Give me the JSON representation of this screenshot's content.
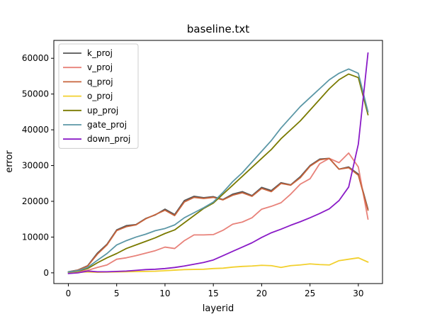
{
  "chart_data": {
    "type": "line",
    "title": "baseline.txt",
    "xlabel": "layerid",
    "ylabel": "error",
    "xlim": [
      -1.5,
      32.5
    ],
    "ylim": [
      -3000,
      65000
    ],
    "xticks": [
      0,
      5,
      10,
      15,
      20,
      25,
      30
    ],
    "yticks": [
      0,
      10000,
      20000,
      30000,
      40000,
      50000,
      60000
    ],
    "xtick_labels": [
      "0",
      "5",
      "10",
      "15",
      "20",
      "25",
      "30"
    ],
    "ytick_labels": [
      "0",
      "10000",
      "20000",
      "30000",
      "40000",
      "50000",
      "60000"
    ],
    "grid": false,
    "legend_position": "top-left",
    "x": [
      0,
      1,
      2,
      3,
      4,
      5,
      6,
      7,
      8,
      9,
      10,
      11,
      12,
      13,
      14,
      15,
      16,
      17,
      18,
      19,
      20,
      21,
      22,
      23,
      24,
      25,
      26,
      27,
      28,
      29,
      30,
      31
    ],
    "series": [
      {
        "name": "k_proj",
        "color": "#555555",
        "values": [
          300,
          800,
          2000,
          5500,
          8000,
          12000,
          13200,
          13500,
          15200,
          16200,
          17800,
          16300,
          20200,
          21400,
          21000,
          21300,
          20500,
          22000,
          22700,
          21600,
          23900,
          23000,
          25200,
          24600,
          26900,
          30000,
          31800,
          32000,
          29000,
          29600,
          27600,
          17800
        ]
      },
      {
        "name": "v_proj",
        "color": "#e8827a",
        "values": [
          200,
          400,
          700,
          1500,
          2200,
          3800,
          4200,
          4800,
          5500,
          6200,
          7200,
          6800,
          9000,
          10600,
          10600,
          10700,
          11900,
          13600,
          14200,
          15400,
          17800,
          18600,
          19600,
          22000,
          24800,
          26300,
          30500,
          32000,
          30800,
          33500,
          29600,
          15000
        ]
      },
      {
        "name": "q_proj",
        "color": "#c8643c",
        "values": [
          250,
          750,
          1900,
          5200,
          7800,
          11800,
          12900,
          13400,
          15100,
          16300,
          17500,
          16000,
          19800,
          21100,
          20800,
          21100,
          20400,
          21700,
          22400,
          21400,
          23600,
          22700,
          25000,
          24500,
          26600,
          29800,
          31600,
          32000,
          29000,
          29400,
          27300,
          17500
        ]
      },
      {
        "name": "o_proj",
        "color": "#f2d02e",
        "values": [
          100,
          150,
          250,
          150,
          200,
          250,
          300,
          350,
          400,
          450,
          600,
          750,
          900,
          950,
          1000,
          1200,
          1300,
          1600,
          1800,
          1900,
          2100,
          2000,
          1500,
          2000,
          2200,
          2500,
          2300,
          2200,
          3400,
          3800,
          4200,
          3000
        ]
      },
      {
        "name": "up_proj",
        "color": "#7a7a00",
        "values": [
          200,
          500,
          1200,
          2800,
          4200,
          5400,
          6800,
          7800,
          8800,
          9800,
          11000,
          12000,
          14000,
          16000,
          18000,
          19500,
          22000,
          24500,
          27000,
          29500,
          32000,
          34500,
          37500,
          40000,
          42500,
          45500,
          48500,
          51500,
          54000,
          55600,
          54600,
          44200
        ]
      },
      {
        "name": "gate_proj",
        "color": "#5b97a6",
        "values": [
          250,
          600,
          1500,
          3500,
          5400,
          7800,
          9000,
          10000,
          10800,
          11800,
          12400,
          13400,
          15400,
          16800,
          18200,
          19800,
          22500,
          25500,
          28000,
          31000,
          34000,
          37000,
          40500,
          43500,
          46500,
          49000,
          51500,
          54000,
          55800,
          57000,
          55800,
          45000
        ]
      },
      {
        "name": "down_proj",
        "color": "#8a1bc7",
        "values": [
          -200,
          0,
          500,
          300,
          300,
          400,
          500,
          700,
          900,
          1000,
          1200,
          1500,
          1900,
          2400,
          2900,
          3600,
          4800,
          6000,
          7200,
          8400,
          9900,
          11200,
          12200,
          13300,
          14300,
          15400,
          16600,
          17900,
          20200,
          24000,
          36000,
          61500
        ]
      }
    ]
  }
}
